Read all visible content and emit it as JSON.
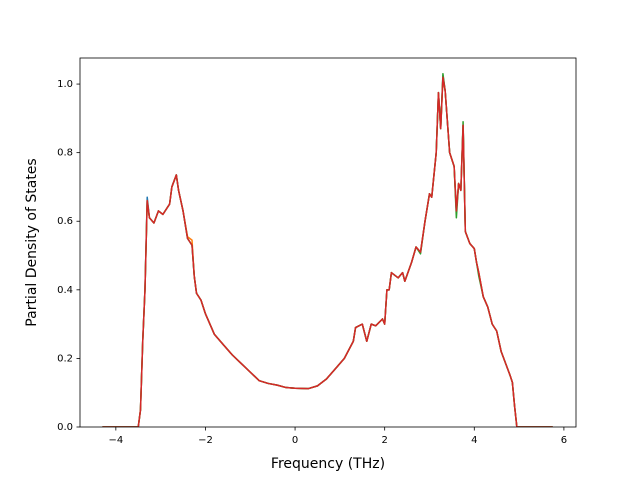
{
  "chart_data": {
    "type": "line",
    "xlabel": "Frequency (THz)",
    "ylabel": "Partial Density of States",
    "x": [
      -4.3,
      -3.5,
      -3.45,
      -3.4,
      -3.35,
      -3.3,
      -3.25,
      -3.15,
      -3.05,
      -2.95,
      -2.8,
      -2.75,
      -2.65,
      -2.6,
      -2.5,
      -2.4,
      -2.3,
      -2.25,
      -2.2,
      -2.1,
      -2.0,
      -1.8,
      -1.6,
      -1.4,
      -1.2,
      -1.0,
      -0.8,
      -0.6,
      -0.4,
      -0.2,
      0.0,
      0.3,
      0.5,
      0.7,
      0.9,
      1.1,
      1.3,
      1.35,
      1.5,
      1.6,
      1.7,
      1.8,
      1.95,
      2.0,
      2.05,
      2.1,
      2.15,
      2.3,
      2.4,
      2.45,
      2.6,
      2.7,
      2.8,
      2.9,
      3.0,
      3.05,
      3.15,
      3.2,
      3.25,
      3.3,
      3.35,
      3.45,
      3.55,
      3.6,
      3.65,
      3.7,
      3.75,
      3.8,
      3.9,
      4.0,
      4.05,
      4.1,
      4.2,
      4.3,
      4.4,
      4.5,
      4.6,
      4.8,
      4.85,
      4.9,
      4.95,
      5.75
    ],
    "series": [
      {
        "color": "#1f77b4",
        "values": [
          0,
          0,
          0.05,
          0.25,
          0.4,
          0.67,
          0.61,
          0.595,
          0.63,
          0.62,
          0.65,
          0.7,
          0.735,
          0.69,
          0.63,
          0.55,
          0.53,
          0.44,
          0.39,
          0.37,
          0.33,
          0.27,
          0.24,
          0.21,
          0.185,
          0.16,
          0.135,
          0.127,
          0.122,
          0.115,
          0.113,
          0.112,
          0.12,
          0.14,
          0.17,
          0.2,
          0.25,
          0.29,
          0.3,
          0.25,
          0.3,
          0.295,
          0.315,
          0.3,
          0.4,
          0.4,
          0.45,
          0.435,
          0.45,
          0.425,
          0.48,
          0.525,
          0.51,
          0.6,
          0.68,
          0.67,
          0.8,
          0.975,
          0.87,
          1.025,
          0.98,
          0.8,
          0.76,
          0.63,
          0.71,
          0.69,
          0.88,
          0.57,
          0.535,
          0.52,
          0.48,
          0.45,
          0.38,
          0.35,
          0.3,
          0.28,
          0.22,
          0.15,
          0.13,
          0.06,
          0,
          0
        ]
      },
      {
        "color": "#ff7f0e",
        "values": [
          0,
          0,
          0.05,
          0.25,
          0.4,
          0.66,
          0.61,
          0.595,
          0.63,
          0.62,
          0.65,
          0.7,
          0.735,
          0.69,
          0.63,
          0.555,
          0.545,
          0.44,
          0.39,
          0.37,
          0.33,
          0.27,
          0.24,
          0.21,
          0.185,
          0.16,
          0.135,
          0.127,
          0.122,
          0.115,
          0.113,
          0.112,
          0.12,
          0.14,
          0.17,
          0.2,
          0.25,
          0.29,
          0.3,
          0.25,
          0.3,
          0.295,
          0.315,
          0.3,
          0.4,
          0.4,
          0.45,
          0.435,
          0.45,
          0.425,
          0.48,
          0.525,
          0.51,
          0.6,
          0.68,
          0.67,
          0.8,
          0.975,
          0.87,
          1.02,
          0.98,
          0.8,
          0.76,
          0.63,
          0.71,
          0.69,
          0.88,
          0.57,
          0.535,
          0.52,
          0.48,
          0.45,
          0.38,
          0.35,
          0.3,
          0.28,
          0.22,
          0.15,
          0.13,
          0.06,
          0,
          0
        ]
      },
      {
        "color": "#2ca02c",
        "values": [
          0,
          0,
          0.05,
          0.25,
          0.4,
          0.66,
          0.61,
          0.595,
          0.63,
          0.62,
          0.65,
          0.7,
          0.735,
          0.69,
          0.63,
          0.55,
          0.53,
          0.44,
          0.39,
          0.37,
          0.33,
          0.27,
          0.24,
          0.21,
          0.185,
          0.16,
          0.135,
          0.127,
          0.122,
          0.115,
          0.113,
          0.112,
          0.12,
          0.14,
          0.17,
          0.2,
          0.25,
          0.29,
          0.3,
          0.25,
          0.3,
          0.295,
          0.315,
          0.3,
          0.4,
          0.4,
          0.45,
          0.435,
          0.45,
          0.425,
          0.48,
          0.525,
          0.505,
          0.6,
          0.68,
          0.67,
          0.8,
          0.975,
          0.87,
          1.03,
          0.98,
          0.8,
          0.76,
          0.61,
          0.71,
          0.69,
          0.89,
          0.57,
          0.535,
          0.52,
          0.48,
          0.44,
          0.38,
          0.35,
          0.3,
          0.28,
          0.22,
          0.15,
          0.13,
          0.06,
          0,
          0
        ]
      },
      {
        "color": "#d62728",
        "values": [
          0,
          0,
          0.05,
          0.25,
          0.4,
          0.66,
          0.61,
          0.595,
          0.63,
          0.62,
          0.65,
          0.7,
          0.735,
          0.69,
          0.63,
          0.55,
          0.53,
          0.44,
          0.39,
          0.37,
          0.33,
          0.27,
          0.24,
          0.21,
          0.185,
          0.16,
          0.135,
          0.127,
          0.122,
          0.115,
          0.113,
          0.112,
          0.12,
          0.14,
          0.17,
          0.2,
          0.25,
          0.29,
          0.3,
          0.25,
          0.3,
          0.295,
          0.315,
          0.3,
          0.4,
          0.4,
          0.45,
          0.435,
          0.45,
          0.425,
          0.48,
          0.525,
          0.51,
          0.6,
          0.68,
          0.67,
          0.8,
          0.975,
          0.87,
          1.02,
          0.98,
          0.8,
          0.76,
          0.63,
          0.71,
          0.69,
          0.88,
          0.57,
          0.535,
          0.52,
          0.48,
          0.45,
          0.38,
          0.35,
          0.3,
          0.28,
          0.22,
          0.15,
          0.13,
          0.06,
          0,
          0
        ]
      }
    ],
    "xlim": [
      -4.8,
      6.27
    ],
    "ylim": [
      0,
      1.076
    ],
    "xticks": [
      {
        "value": -4,
        "label": "−4"
      },
      {
        "value": -2,
        "label": "−2"
      },
      0,
      2,
      4,
      6
    ],
    "yticks": [
      {
        "value": 0,
        "label": "0.0"
      },
      {
        "value": 0.2,
        "label": "0.2"
      },
      {
        "value": 0.4,
        "label": "0.4"
      },
      {
        "value": 0.6,
        "label": "0.6"
      },
      {
        "value": 0.8,
        "label": "0.8"
      },
      {
        "value": 1.0,
        "label": "1.0"
      }
    ]
  }
}
